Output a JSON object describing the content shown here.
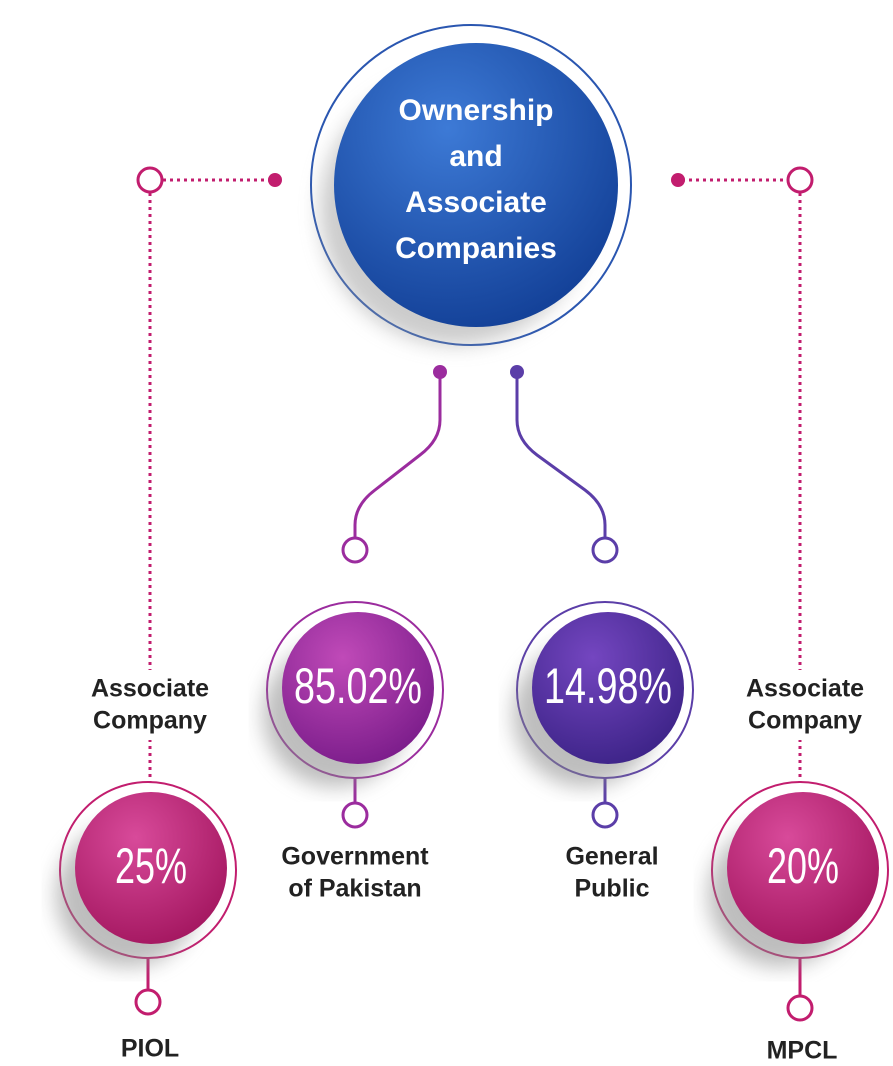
{
  "title": {
    "lines": [
      "Ownership",
      "and",
      "Associate",
      "Companies"
    ]
  },
  "nodes": [
    {
      "tag": [
        "Associate",
        "Company"
      ],
      "value": "25%",
      "label": [
        "PIOL"
      ]
    },
    {
      "value": "85.02%",
      "label": [
        "Government",
        "of Pakistan"
      ]
    },
    {
      "value": "14.98%",
      "label": [
        "General",
        "Public"
      ]
    },
    {
      "tag": [
        "Associate",
        "Company"
      ],
      "value": "20%",
      "label": [
        "MPCL"
      ]
    }
  ]
}
